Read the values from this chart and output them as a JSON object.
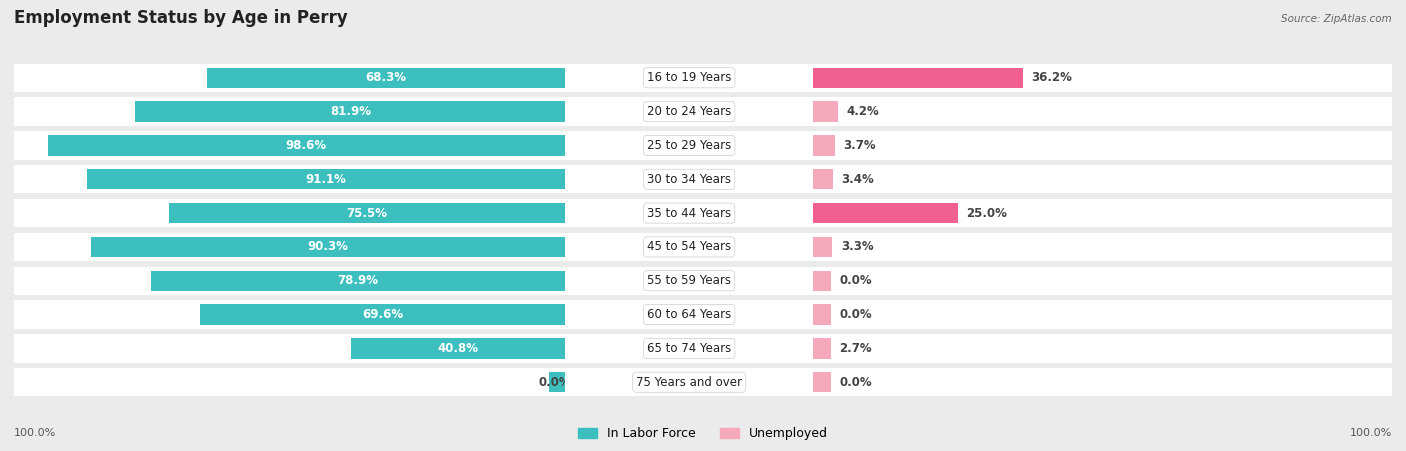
{
  "title": "Employment Status by Age in Perry",
  "source": "Source: ZipAtlas.com",
  "categories": [
    "16 to 19 Years",
    "20 to 24 Years",
    "25 to 29 Years",
    "30 to 34 Years",
    "35 to 44 Years",
    "45 to 54 Years",
    "55 to 59 Years",
    "60 to 64 Years",
    "65 to 74 Years",
    "75 Years and over"
  ],
  "labor_force": [
    68.3,
    81.9,
    98.6,
    91.1,
    75.5,
    90.3,
    78.9,
    69.6,
    40.8,
    0.0
  ],
  "unemployed": [
    36.2,
    4.2,
    3.7,
    3.4,
    25.0,
    3.3,
    0.0,
    0.0,
    2.7,
    0.0
  ],
  "labor_color": "#3DBFBF",
  "unemployed_color_strong": "#F06090",
  "unemployed_color_light": "#F4AABB",
  "background_color": "#EBEBEB",
  "bar_bg_color": "#F0EEF2",
  "title_fontsize": 12,
  "label_fontsize": 9,
  "value_fontsize": 8.5,
  "bar_height": 0.6,
  "min_bar_stub": 3.0,
  "max_value": 100.0
}
